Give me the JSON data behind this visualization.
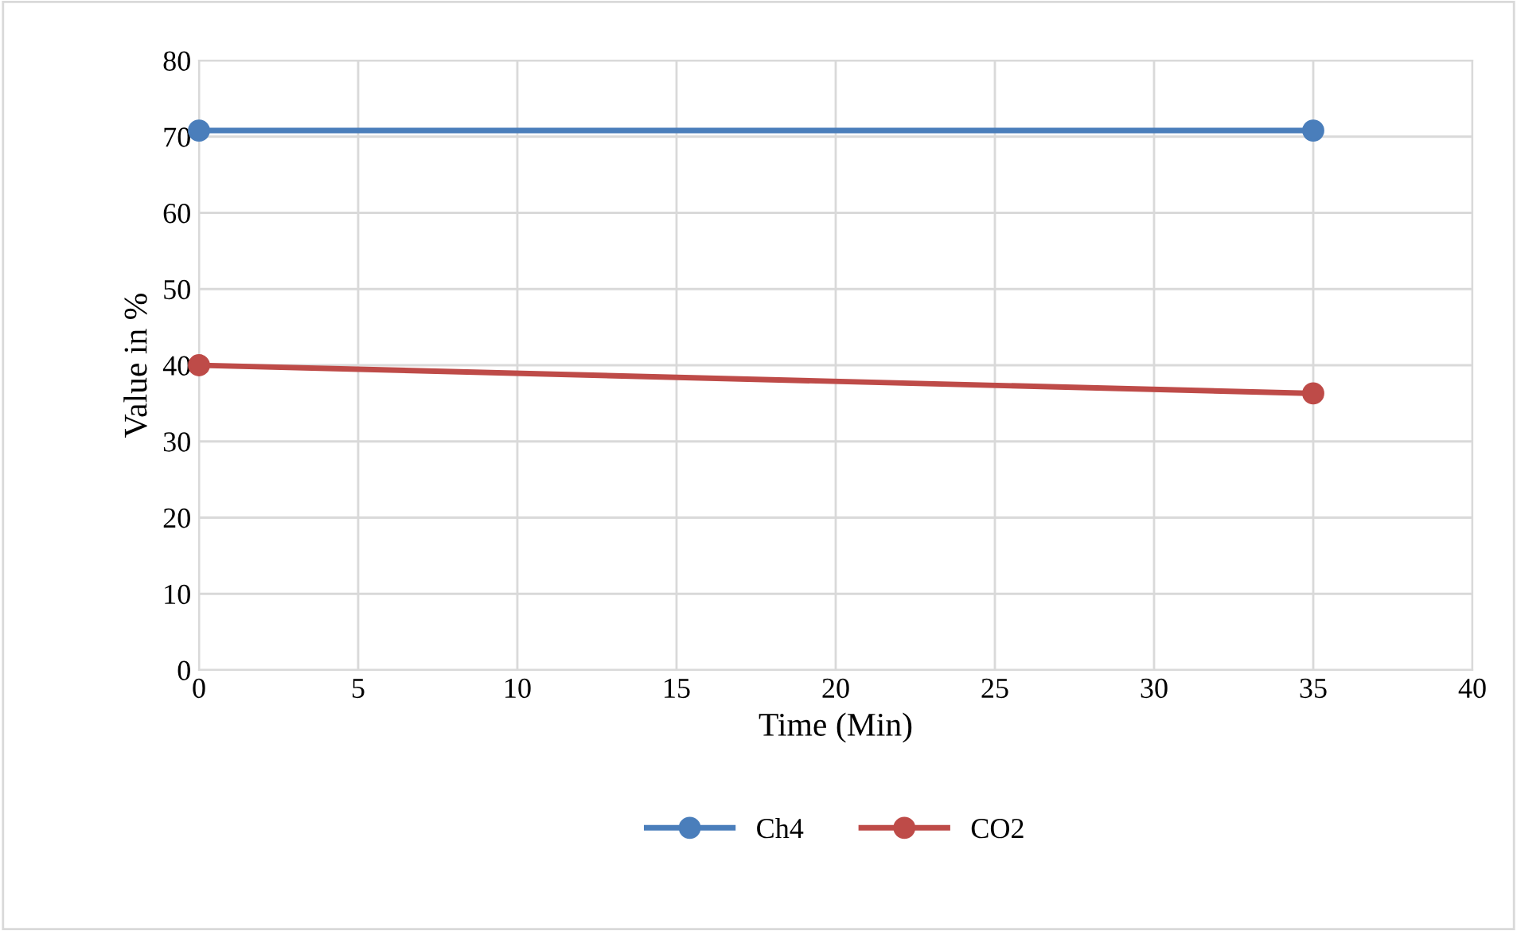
{
  "chart_data": {
    "type": "line",
    "xlabel": "Time (Min)",
    "ylabel": "Value in %",
    "x": [
      0,
      35
    ],
    "series": [
      {
        "name": "Ch4",
        "color": "#4a7ebb",
        "values": [
          70.8,
          70.8
        ]
      },
      {
        "name": "CO2",
        "color": "#be4b48",
        "values": [
          40,
          36.3
        ]
      }
    ],
    "xlim": [
      0,
      40
    ],
    "xticks": [
      0,
      5,
      10,
      15,
      20,
      25,
      30,
      35,
      40
    ],
    "ylim": [
      0,
      80
    ],
    "yticks": [
      0,
      10,
      20,
      30,
      40,
      50,
      60,
      70,
      80
    ],
    "grid": true,
    "legend": "bottom",
    "marker": "circle",
    "line_style": "solid"
  }
}
